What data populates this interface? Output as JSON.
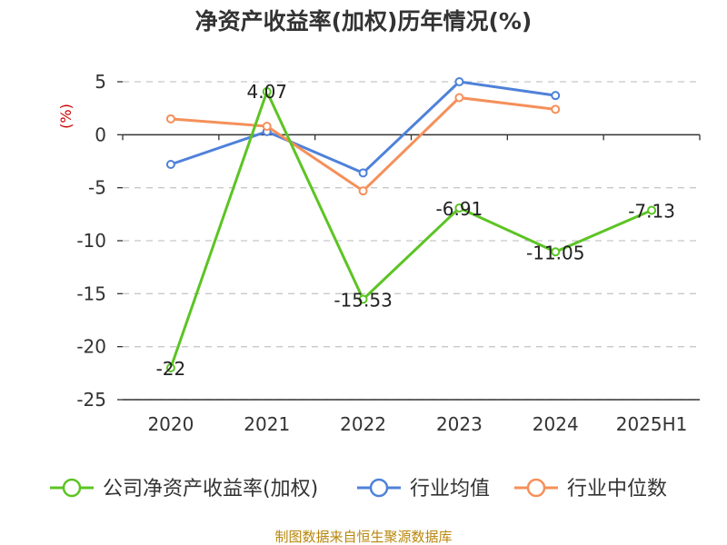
{
  "chart_data": {
    "type": "line",
    "title": "净资产收益率(加权)历年情况(%)",
    "ylabel": "(%)",
    "xlabel": "",
    "categories": [
      "2020",
      "2021",
      "2022",
      "2023",
      "2024",
      "2025H1"
    ],
    "ylim": [
      -25,
      5
    ],
    "yticks": [
      5,
      0,
      -5,
      -10,
      -15,
      -20,
      -25
    ],
    "grid": true,
    "legend_position": "bottom",
    "series": [
      {
        "name": "公司净资产收益率(加权)",
        "color": "#5cc424",
        "values": [
          -22,
          4.07,
          -15.53,
          -6.91,
          -11.05,
          -7.13
        ],
        "labels": [
          "-22",
          "4.07",
          "-15.53",
          "-6.91",
          "-11.05",
          "-7.13"
        ]
      },
      {
        "name": "行业均值",
        "color": "#4f81d9",
        "values": [
          -2.8,
          0.3,
          -3.6,
          5.0,
          3.7,
          null
        ]
      },
      {
        "name": "行业中位数",
        "color": "#f5905a",
        "values": [
          1.5,
          0.8,
          -5.3,
          3.5,
          2.4,
          null
        ]
      }
    ]
  },
  "footer": {
    "source": "制图数据来自恒生聚源数据库"
  }
}
